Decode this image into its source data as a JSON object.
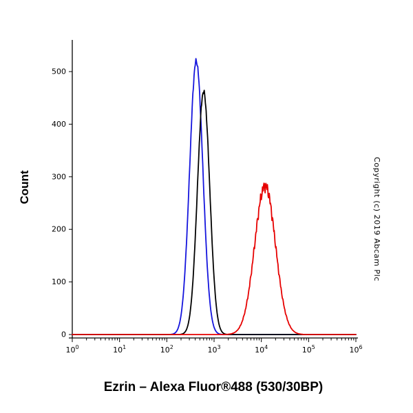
{
  "page": {
    "background": "#ffffff"
  },
  "chart_data": {
    "type": "line",
    "subtype": "flow-cytometry-histogram",
    "title": "Ezrin – Alexa Fluor®488 (530/30BP)",
    "xlabel": "",
    "ylabel": "Count",
    "x_scale": "log10",
    "x_range": [
      1,
      1000000
    ],
    "ylim": [
      0,
      540
    ],
    "y_ticks": [
      0,
      100,
      200,
      300,
      400,
      500
    ],
    "x_tick_labels": [
      "10^0",
      "10^1",
      "10^2",
      "10^3",
      "10^4",
      "10^5",
      "10^6"
    ],
    "x_tick_exponents": [
      0,
      1,
      2,
      3,
      4,
      5,
      6
    ],
    "grid": false,
    "legend": "none",
    "annotations": [
      "Copyright (c) 2019 Abcam Plc"
    ],
    "axis_color": "#000000",
    "series": [
      {
        "name": "blue-curve",
        "color": "#1414dd",
        "distribution": "gaussian-in-log10x",
        "peak_x": 420,
        "peak_count": 520,
        "sigma_log10": 0.14,
        "noise": 0.012,
        "seed": 1
      },
      {
        "name": "black-curve",
        "color": "#000000",
        "distribution": "gaussian-in-log10x",
        "peak_x": 600,
        "peak_count": 462,
        "sigma_log10": 0.13,
        "noise": 0.012,
        "seed": 2
      },
      {
        "name": "red-curve",
        "color": "#e60000",
        "distribution": "gaussian-in-log10x",
        "peak_x": 12000,
        "peak_count": 283,
        "sigma_log10": 0.22,
        "noise": 0.05,
        "seed": 3
      }
    ]
  }
}
